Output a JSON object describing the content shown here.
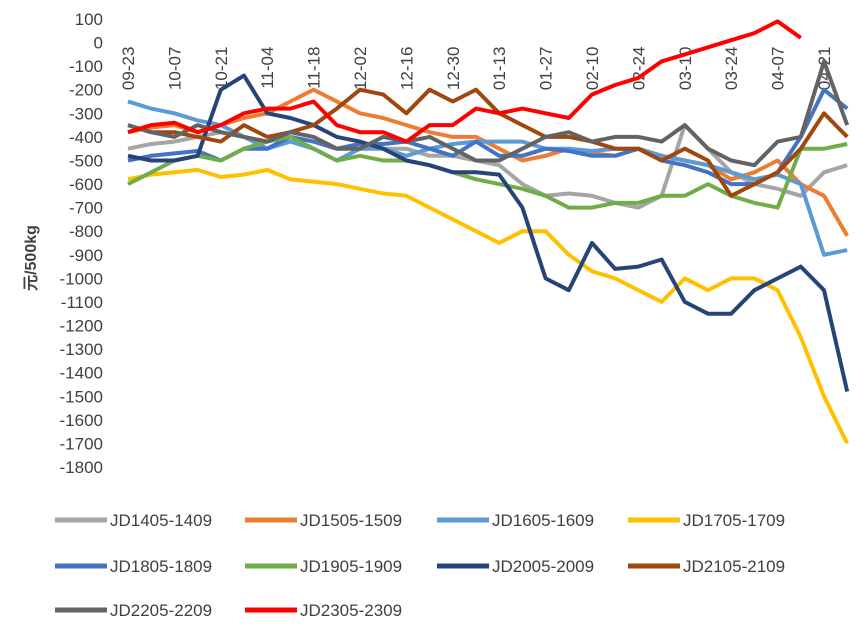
{
  "chart_data": {
    "type": "line",
    "y_label": "元/500kg",
    "categories": [
      "09-23",
      null,
      "10-07",
      null,
      "10-21",
      null,
      "11-04",
      null,
      "11-18",
      null,
      "12-02",
      null,
      "12-16",
      null,
      "12-30",
      null,
      "01-13",
      null,
      "01-27",
      null,
      "02-10",
      null,
      "02-24",
      null,
      "03-10",
      null,
      "03-24",
      null,
      "04-07",
      null,
      "04-21",
      null
    ],
    "ylim": [
      -1800,
      100
    ],
    "yticks": [
      100,
      0,
      -100,
      -200,
      -300,
      -400,
      -500,
      -600,
      -700,
      -800,
      -900,
      -1000,
      -1100,
      -1200,
      -1300,
      -1400,
      -1500,
      -1600,
      -1700,
      -1800
    ],
    "grid": false,
    "legend": "bottom",
    "series": [
      {
        "name": "JD1405-1409",
        "color": "#a5a5a5",
        "values": [
          -450,
          -430,
          -420,
          -400,
          -380,
          -400,
          -420,
          -400,
          -420,
          -450,
          -430,
          -450,
          -450,
          -480,
          -480,
          -500,
          -520,
          -600,
          -650,
          -640,
          -650,
          -680,
          -700,
          -650,
          -350,
          -450,
          -550,
          -600,
          -620,
          -650,
          -550,
          -520
        ]
      },
      {
        "name": "JD1505-1509",
        "color": "#ed7d31",
        "values": [
          -380,
          -360,
          -350,
          -380,
          -350,
          -320,
          -300,
          -250,
          -200,
          -250,
          -300,
          -320,
          -350,
          -380,
          -400,
          -400,
          -450,
          -500,
          -480,
          -450,
          -470,
          -480,
          -450,
          -480,
          -500,
          -520,
          -580,
          -550,
          -500,
          -600,
          -650,
          -820
        ]
      },
      {
        "name": "JD1605-1609",
        "color": "#5b9bd5",
        "values": [
          -250,
          -280,
          -300,
          -330,
          -350,
          -400,
          -450,
          -420,
          -450,
          -500,
          -450,
          -450,
          -480,
          -450,
          -430,
          -420,
          -420,
          -420,
          -450,
          -450,
          -460,
          -450,
          -450,
          -480,
          -500,
          -520,
          -550,
          -580,
          -560,
          -600,
          -900,
          -880
        ]
      },
      {
        "name": "JD1705-1709",
        "color": "#ffc000",
        "values": [
          -580,
          -560,
          -550,
          -540,
          -570,
          -560,
          -540,
          -580,
          -590,
          -600,
          -620,
          -640,
          -650,
          -700,
          -750,
          -800,
          -850,
          -800,
          -800,
          -900,
          -970,
          -1000,
          -1050,
          -1100,
          -1000,
          -1050,
          -1000,
          -1000,
          -1050,
          -1250,
          -1500,
          -1700
        ]
      },
      {
        "name": "JD1805-1809",
        "color": "#4472c4",
        "values": [
          -500,
          -480,
          -470,
          -460,
          -500,
          -450,
          -450,
          -400,
          -420,
          -450,
          -430,
          -430,
          -420,
          -450,
          -480,
          -420,
          -480,
          -480,
          -450,
          -460,
          -480,
          -480,
          -450,
          -500,
          -520,
          -550,
          -600,
          -600,
          -550,
          -400,
          -200,
          -280
        ]
      },
      {
        "name": "JD1905-1909",
        "color": "#70ad47",
        "values": [
          -600,
          -550,
          -500,
          -480,
          -500,
          -450,
          -420,
          -400,
          -450,
          -500,
          -480,
          -500,
          -500,
          -520,
          -550,
          -580,
          -600,
          -620,
          -650,
          -700,
          -700,
          -680,
          -680,
          -650,
          -650,
          -600,
          -650,
          -680,
          -700,
          -450,
          -450,
          -430
        ]
      },
      {
        "name": "JD2005-2009",
        "color": "#264478",
        "values": [
          -480,
          -500,
          -500,
          -480,
          -200,
          -140,
          -300,
          -320,
          -350,
          -400,
          -420,
          -450,
          -500,
          -520,
          -550,
          -550,
          -560,
          -700,
          -1000,
          -1050,
          -850,
          -960,
          -950,
          -920,
          -1100,
          -1150,
          -1150,
          -1050,
          -1000,
          -950,
          -1050,
          -1480
        ]
      },
      {
        "name": "JD2105-2109",
        "color": "#9e480e",
        "values": [
          -350,
          -380,
          -380,
          -400,
          -420,
          -350,
          -400,
          -380,
          -350,
          -280,
          -200,
          -220,
          -300,
          -200,
          -250,
          -200,
          -300,
          -350,
          -400,
          -400,
          -420,
          -450,
          -450,
          -500,
          -450,
          -500,
          -650,
          -600,
          -550,
          -450,
          -300,
          -400
        ]
      },
      {
        "name": "JD2205-2209",
        "color": "#636363",
        "values": [
          -350,
          -380,
          -400,
          -350,
          -380,
          -400,
          -420,
          -380,
          -400,
          -450,
          -450,
          -400,
          -420,
          -400,
          -450,
          -500,
          -500,
          -450,
          -400,
          -380,
          -420,
          -400,
          -400,
          -420,
          -350,
          -450,
          -500,
          -520,
          -420,
          -400,
          -80,
          -350
        ]
      },
      {
        "name": "JD2305-2309",
        "color": "#ff0000",
        "values": [
          -380,
          -350,
          -340,
          -380,
          -350,
          -300,
          -280,
          -280,
          -250,
          -350,
          -380,
          -380,
          -420,
          -350,
          -350,
          -280,
          -300,
          -280,
          -300,
          -320,
          -220,
          -180,
          -150,
          -80,
          -50,
          -20,
          10,
          40,
          90,
          20,
          null,
          null
        ]
      }
    ]
  }
}
